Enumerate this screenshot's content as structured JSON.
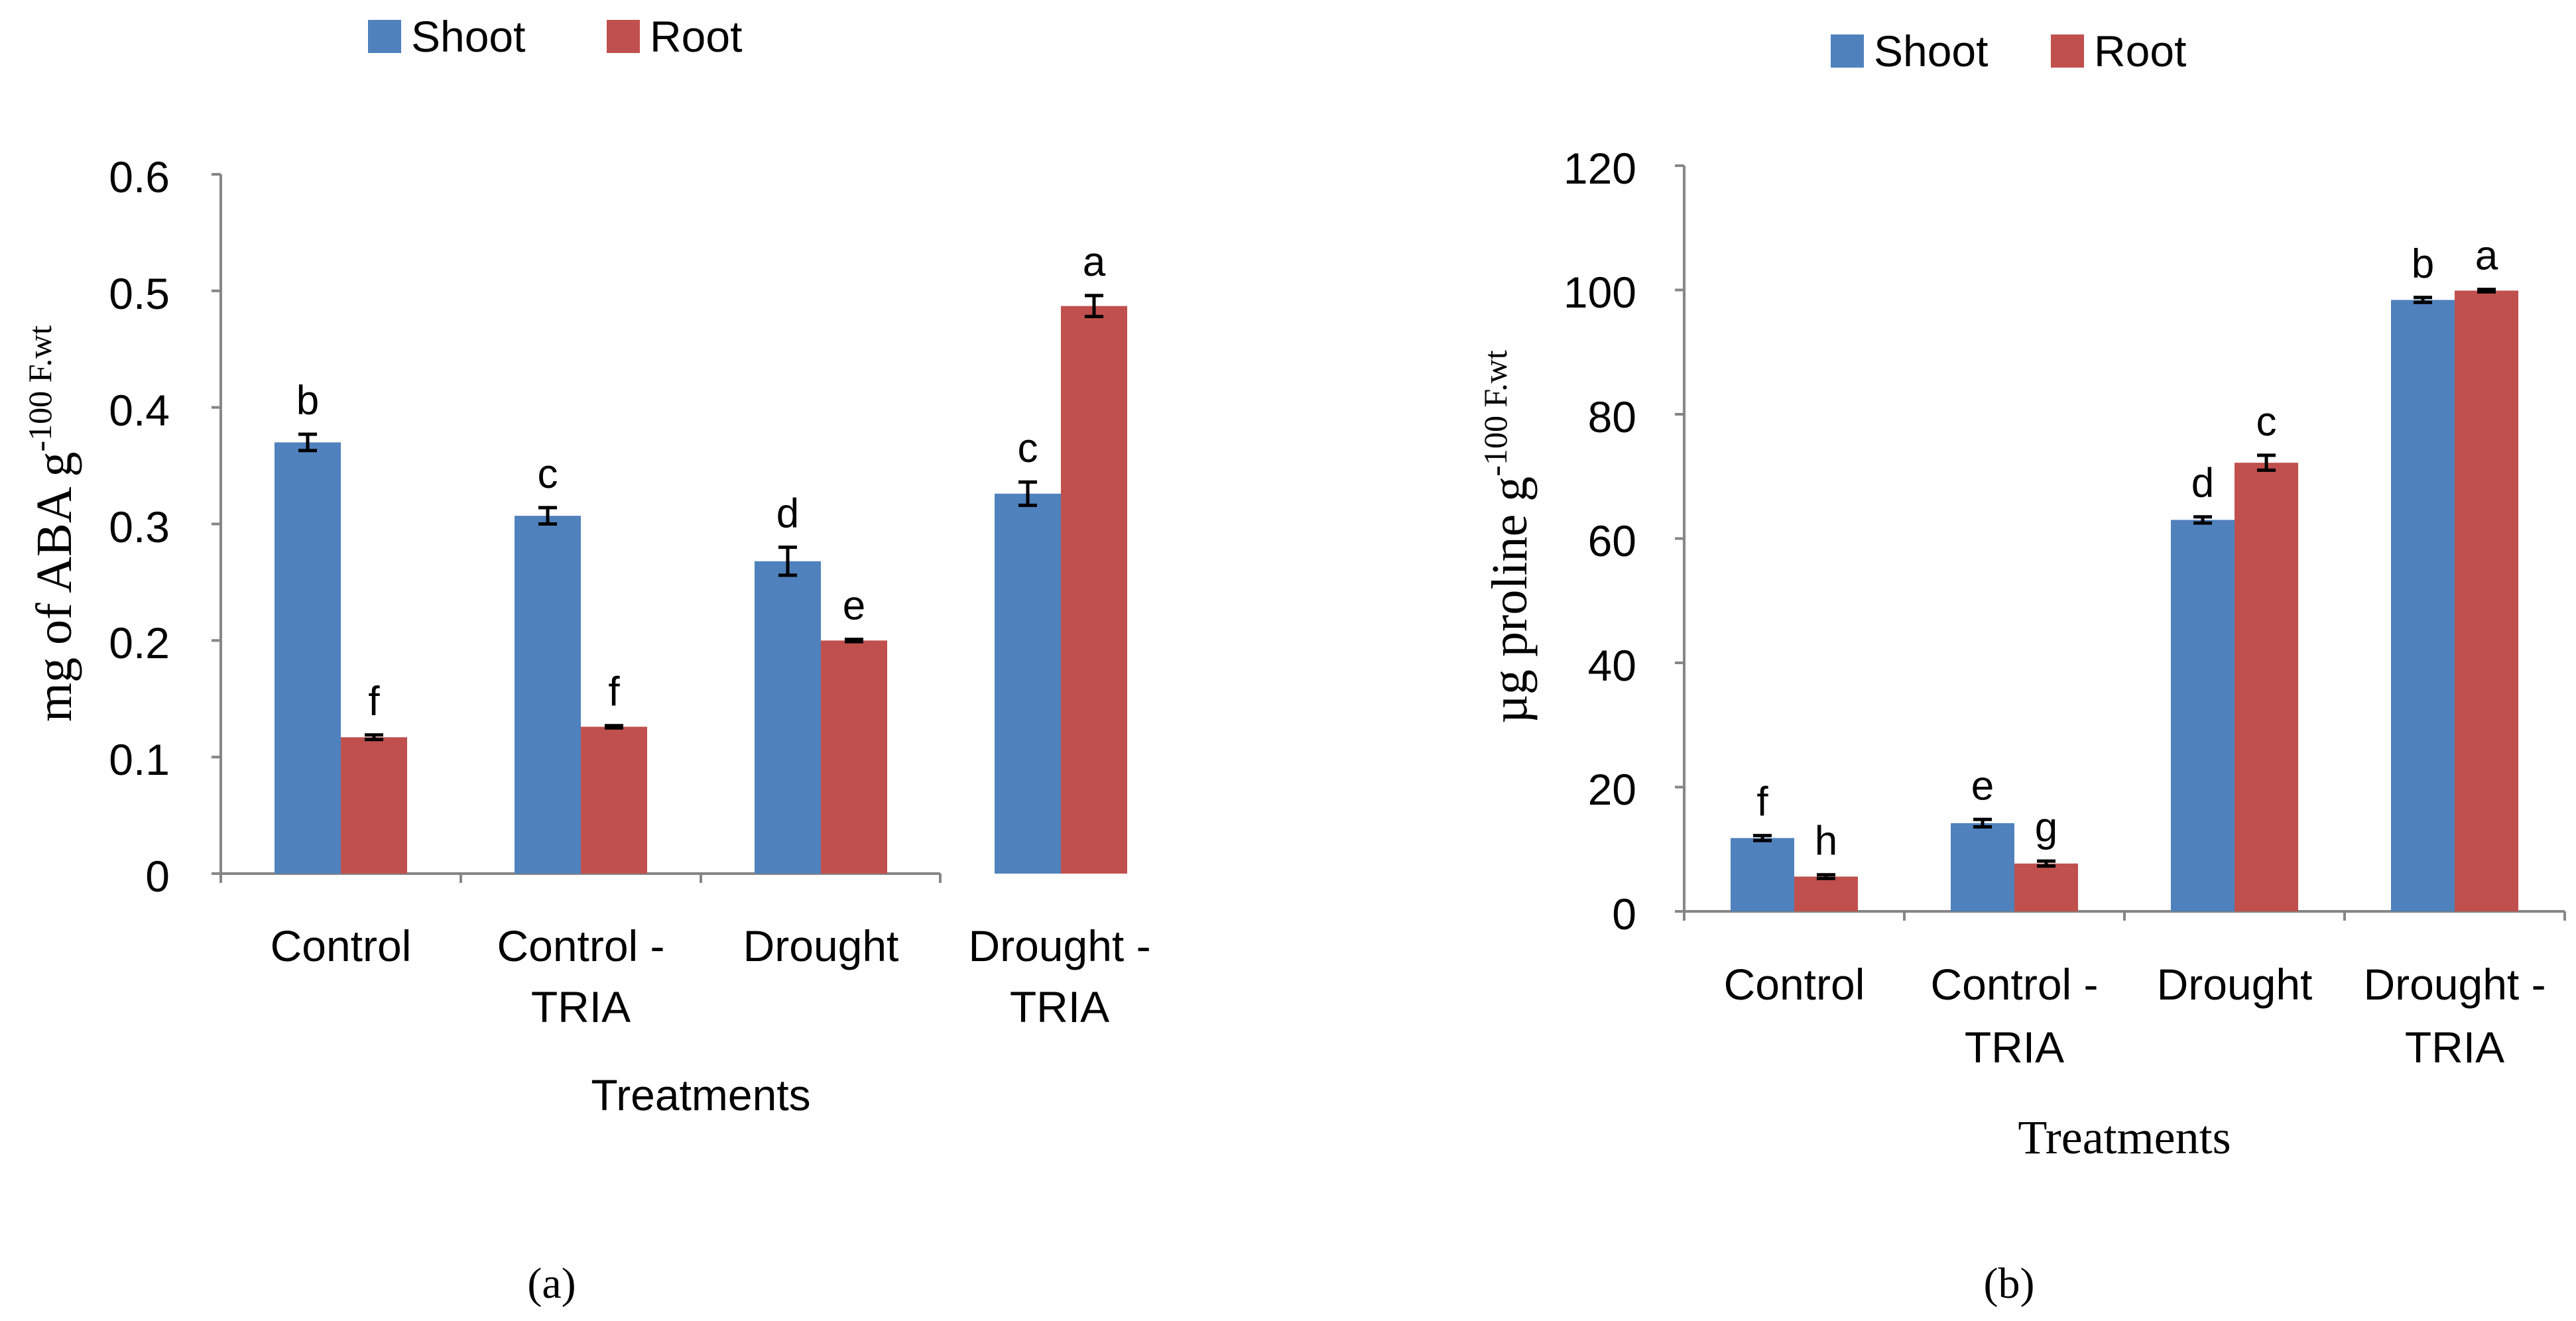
{
  "colors": {
    "shoot": "#4F81BD",
    "root": "#C0504D",
    "axis": "#868686",
    "text": "#000000",
    "error": "#000000"
  },
  "chart_data": [
    {
      "type": "bar",
      "panel_label": "(a)",
      "legend": [
        "Shoot",
        "Root"
      ],
      "legend_position": "top",
      "categories": [
        [
          "Control"
        ],
        [
          "Control -",
          "TRIA"
        ],
        [
          "Drought"
        ],
        [
          "Drought -",
          "TRIA"
        ]
      ],
      "series": [
        {
          "name": "Shoot",
          "values": [
            0.37,
            0.307,
            0.268,
            0.326
          ],
          "errors": [
            0.007,
            0.007,
            0.012,
            0.01
          ],
          "letters": [
            "b",
            "c",
            "d",
            "c"
          ]
        },
        {
          "name": "Root",
          "values": [
            0.117,
            0.126,
            0.2,
            0.487
          ],
          "errors": [
            0.002,
            0.001,
            0.001,
            0.009
          ],
          "letters": [
            "f",
            "f",
            "e",
            "a"
          ]
        }
      ],
      "yticks": [
        "0",
        "0.1",
        "0.2",
        "0.3",
        "0.4",
        "0.5",
        "0.6"
      ],
      "ylim": [
        0,
        0.6
      ],
      "xlabel": "Treatments",
      "ylabel": "mg of ABA g",
      "ylabel_super": "-100 F.wt"
    },
    {
      "type": "bar",
      "panel_label": "(b)",
      "legend": [
        "Shoot",
        "Root"
      ],
      "legend_position": "top",
      "categories": [
        [
          "Control"
        ],
        [
          "Control -",
          "TRIA"
        ],
        [
          "Drought"
        ],
        [
          "Drought -",
          "TRIA"
        ]
      ],
      "series": [
        {
          "name": "Shoot",
          "values": [
            11.8,
            14.2,
            63.0,
            98.4
          ],
          "errors": [
            0.4,
            0.6,
            0.5,
            0.4
          ],
          "letters": [
            "f",
            "e",
            "d",
            "b"
          ]
        },
        {
          "name": "Root",
          "values": [
            5.6,
            7.7,
            72.2,
            99.9
          ],
          "errors": [
            0.3,
            0.4,
            1.2,
            0.2
          ],
          "letters": [
            "h",
            "g",
            "c",
            "a"
          ]
        }
      ],
      "yticks": [
        "0",
        "20",
        "40",
        "60",
        "80",
        "100",
        "120"
      ],
      "ylim": [
        0,
        120
      ],
      "xlabel": "Treatments",
      "ylabel": "µg proline g",
      "ylabel_super": "-100 F.wt"
    }
  ]
}
